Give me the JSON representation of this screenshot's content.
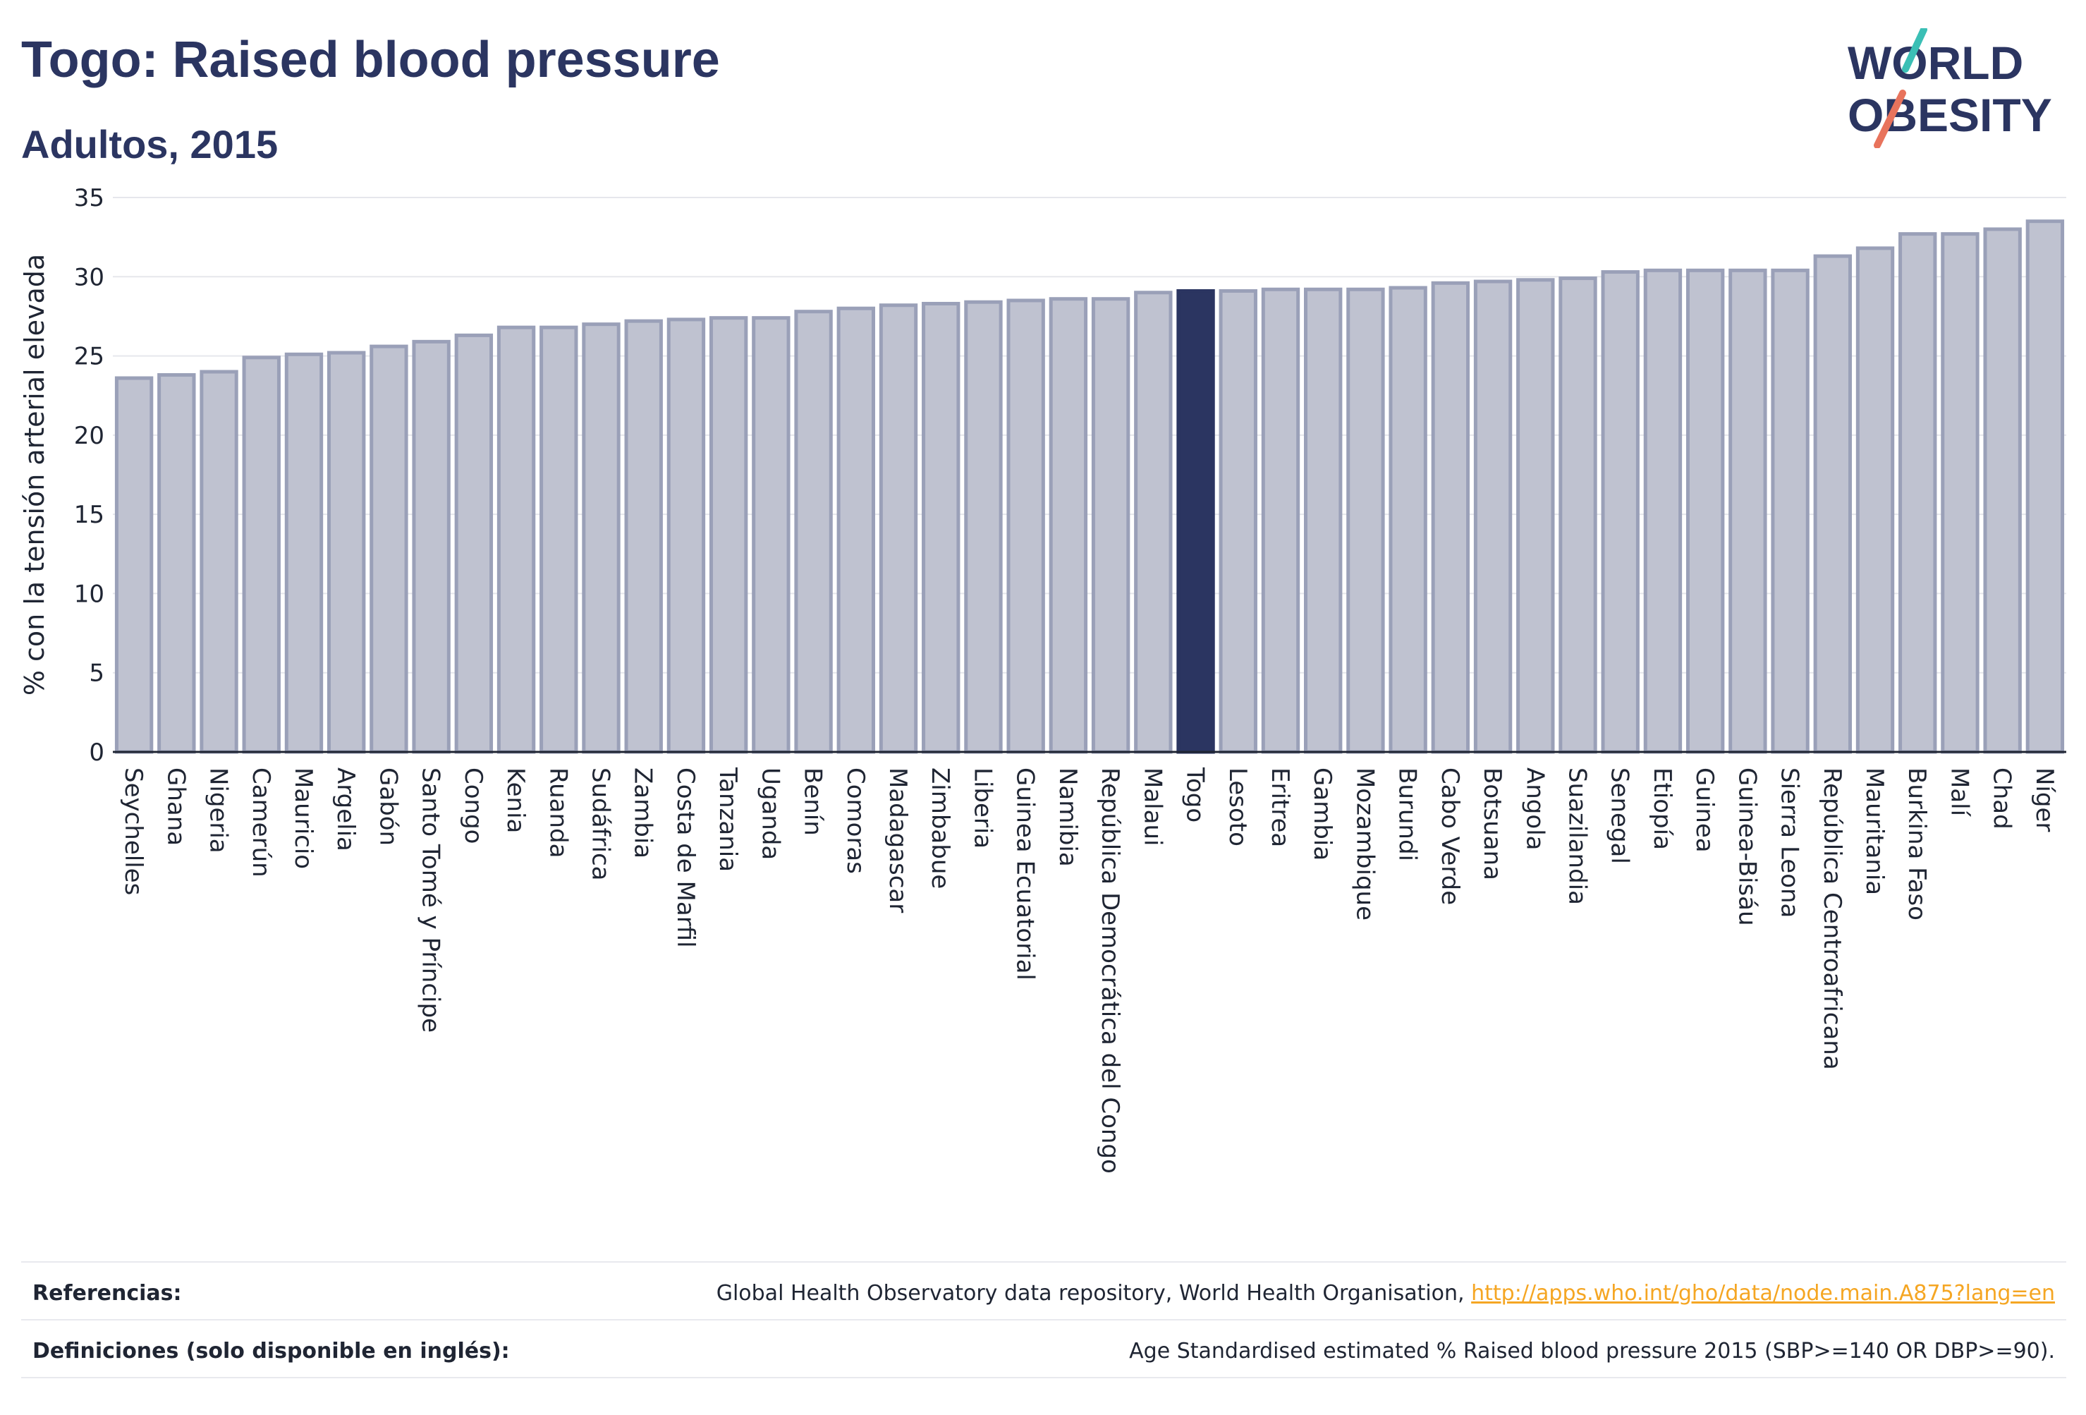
{
  "header": {
    "title": "Togo: Raised blood pressure",
    "subtitle": "Adultos, 2015"
  },
  "logo": {
    "line1": "WORLD",
    "line2": "OBESITY",
    "accent_teal": "#3bbfb5",
    "accent_coral": "#e8735c",
    "text_color": "#2b3561"
  },
  "footer": {
    "references_label": "Referencias:",
    "references_text": "Global Health Observatory data repository, World Health Organisation,",
    "references_link": "http://apps.who.int/gho/data/node.main.A875?lang=en",
    "definitions_label": "Definiciones (solo disponible en inglés):",
    "definitions_text": "Age Standardised estimated % Raised blood pressure 2015 (SBP>=140 OR DBP>=90)."
  },
  "chart_data": {
    "type": "bar",
    "title": "Togo: Raised blood pressure",
    "subtitle": "Adultos, 2015",
    "xlabel": "",
    "ylabel": "% con la tensión arterial elevada",
    "ylim": [
      0,
      35
    ],
    "yticks": [
      0,
      5,
      10,
      15,
      20,
      25,
      30,
      35
    ],
    "grid": true,
    "highlight": "Togo",
    "colors": {
      "bar": "#bfc2d0",
      "bar_edge": "#9aa0b8",
      "highlight": "#2b3561"
    },
    "categories": [
      "Seychelles",
      "Ghana",
      "Nigeria",
      "Camerún",
      "Mauricio",
      "Argelia",
      "Gabón",
      "Santo Tomé y Príncipe",
      "Congo",
      "Kenia",
      "Ruanda",
      "Sudáfrica",
      "Zambia",
      "Costa de Marfil",
      "Tanzania",
      "Uganda",
      "Benín",
      "Comoras",
      "Madagascar",
      "Zimbabue",
      "Liberia",
      "Guinea Ecuatorial",
      "Namibia",
      "República Democrática del Congo",
      "Malaui",
      "Togo",
      "Lesoto",
      "Eritrea",
      "Gambia",
      "Mozambique",
      "Burundi",
      "Cabo Verde",
      "Botsuana",
      "Angola",
      "Suazilandia",
      "Senegal",
      "Etiopía",
      "Guinea",
      "Guinea-Bisáu",
      "Sierra Leona",
      "República Centroafricana",
      "Mauritania",
      "Burkina Faso",
      "Malí",
      "Chad",
      "Níger"
    ],
    "values": [
      23.6,
      23.8,
      24.0,
      24.9,
      25.1,
      25.2,
      25.6,
      25.9,
      26.3,
      26.8,
      26.8,
      27.0,
      27.2,
      27.3,
      27.4,
      27.4,
      27.8,
      28.0,
      28.2,
      28.3,
      28.4,
      28.5,
      28.6,
      28.6,
      29.0,
      29.1,
      29.1,
      29.2,
      29.2,
      29.2,
      29.3,
      29.6,
      29.7,
      29.8,
      29.9,
      30.3,
      30.4,
      30.4,
      30.4,
      30.4,
      31.3,
      31.8,
      32.7,
      32.7,
      33.0,
      33.5
    ]
  }
}
